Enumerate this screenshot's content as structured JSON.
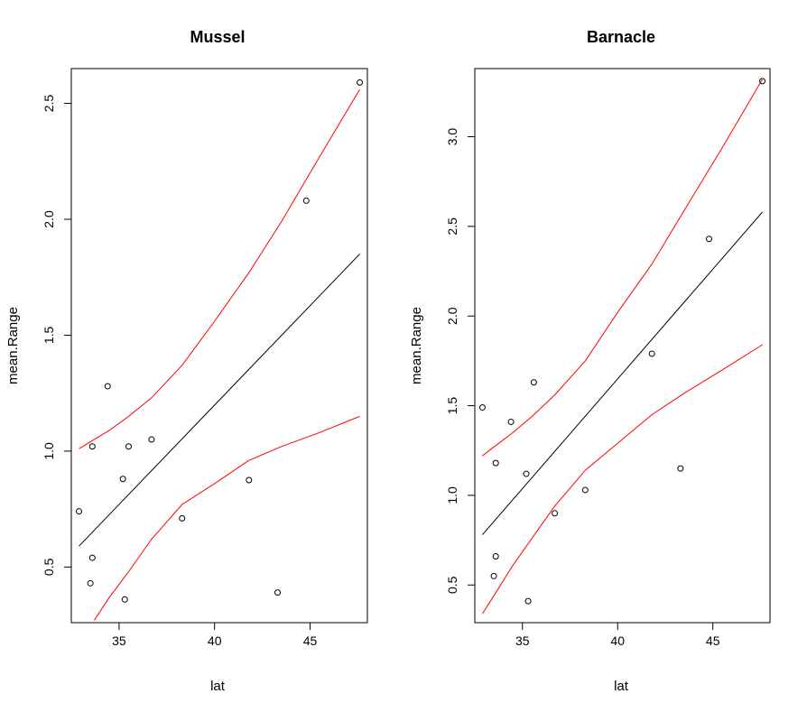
{
  "chart_data": [
    {
      "type": "scatter",
      "title": "Mussel",
      "xlabel": "lat",
      "ylabel": "mean.Range",
      "xlim": [
        32.5,
        48.0
      ],
      "ylim": [
        0.26,
        2.65
      ],
      "xticks": [
        35,
        40,
        45
      ],
      "yticks": [
        0.5,
        1.0,
        1.5,
        2.0,
        2.5
      ],
      "xtick_labels": [
        "35",
        "40",
        "45"
      ],
      "ytick_labels": [
        "0.5",
        "1.0",
        "1.5",
        "2.0",
        "2.5"
      ],
      "points": [
        {
          "x": 32.9,
          "y": 0.74
        },
        {
          "x": 33.5,
          "y": 0.43
        },
        {
          "x": 33.6,
          "y": 0.54
        },
        {
          "x": 33.6,
          "y": 1.02
        },
        {
          "x": 34.4,
          "y": 1.28
        },
        {
          "x": 35.2,
          "y": 0.88
        },
        {
          "x": 35.3,
          "y": 0.36
        },
        {
          "x": 35.5,
          "y": 1.02
        },
        {
          "x": 36.7,
          "y": 1.05
        },
        {
          "x": 38.3,
          "y": 0.71
        },
        {
          "x": 41.8,
          "y": 0.875
        },
        {
          "x": 43.3,
          "y": 0.39
        },
        {
          "x": 44.8,
          "y": 2.08
        },
        {
          "x": 47.6,
          "y": 2.59
        }
      ],
      "series": [
        {
          "role": "fit",
          "color": "#000000",
          "x": [
            32.9,
            47.6
          ],
          "y": [
            0.59,
            1.85
          ]
        },
        {
          "role": "upper",
          "color": "#ff0000",
          "x": [
            32.9,
            33.5,
            34.5,
            35.5,
            36.7,
            38.3,
            40.0,
            41.8,
            43.5,
            45.5,
            47.6
          ],
          "y": [
            1.01,
            1.04,
            1.09,
            1.15,
            1.23,
            1.37,
            1.56,
            1.77,
            1.99,
            2.27,
            2.56
          ]
        },
        {
          "role": "lower",
          "color": "#ff0000",
          "x": [
            33.7,
            34.5,
            35.5,
            36.7,
            38.3,
            40.0,
            41.8,
            43.5,
            45.5,
            47.6
          ],
          "y": [
            0.27,
            0.37,
            0.48,
            0.62,
            0.77,
            0.86,
            0.96,
            1.02,
            1.08,
            1.15
          ]
        }
      ]
    },
    {
      "type": "scatter",
      "title": "Barnacle",
      "xlabel": "lat",
      "ylabel": "mean.Range",
      "xlim": [
        32.5,
        48.0
      ],
      "ylim": [
        0.29,
        3.38
      ],
      "xticks": [
        35,
        40,
        45
      ],
      "yticks": [
        0.5,
        1.0,
        1.5,
        2.0,
        2.5,
        3.0
      ],
      "xtick_labels": [
        "35",
        "40",
        "45"
      ],
      "ytick_labels": [
        "0.5",
        "1.0",
        "1.5",
        "2.0",
        "2.5",
        "3.0"
      ],
      "points": [
        {
          "x": 32.9,
          "y": 1.49
        },
        {
          "x": 33.5,
          "y": 0.55
        },
        {
          "x": 33.6,
          "y": 0.66
        },
        {
          "x": 33.6,
          "y": 1.18
        },
        {
          "x": 34.4,
          "y": 1.41
        },
        {
          "x": 35.2,
          "y": 1.12
        },
        {
          "x": 35.3,
          "y": 0.41
        },
        {
          "x": 35.6,
          "y": 1.63
        },
        {
          "x": 36.7,
          "y": 0.9
        },
        {
          "x": 38.3,
          "y": 1.03
        },
        {
          "x": 41.8,
          "y": 1.79
        },
        {
          "x": 43.3,
          "y": 1.15
        },
        {
          "x": 44.8,
          "y": 2.43
        },
        {
          "x": 47.6,
          "y": 3.31
        }
      ],
      "series": [
        {
          "role": "fit",
          "color": "#000000",
          "x": [
            32.9,
            47.6
          ],
          "y": [
            0.78,
            2.58
          ]
        },
        {
          "role": "upper",
          "color": "#ff0000",
          "x": [
            32.9,
            33.5,
            34.5,
            35.5,
            36.7,
            38.3,
            40.0,
            41.8,
            43.5,
            45.5,
            47.6
          ],
          "y": [
            1.22,
            1.27,
            1.35,
            1.44,
            1.56,
            1.75,
            2.02,
            2.29,
            2.59,
            2.94,
            3.32
          ]
        },
        {
          "role": "lower",
          "color": "#ff0000",
          "x": [
            32.9,
            33.5,
            34.5,
            35.5,
            36.7,
            38.3,
            40.0,
            41.8,
            43.5,
            45.5,
            47.6
          ],
          "y": [
            0.34,
            0.44,
            0.61,
            0.76,
            0.94,
            1.14,
            1.29,
            1.45,
            1.57,
            1.7,
            1.84
          ]
        }
      ]
    }
  ]
}
